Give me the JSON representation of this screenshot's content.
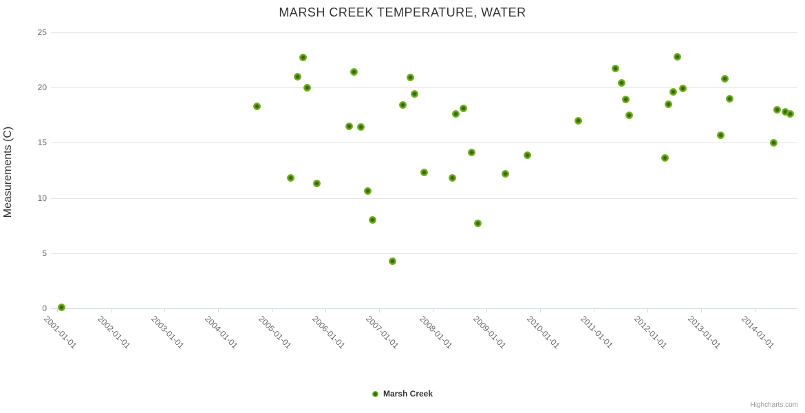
{
  "chart": {
    "title": "MARSH CREEK TEMPERATURE, WATER",
    "y_axis_title": "Measurements (C)",
    "legend_label": "Marsh Creek",
    "credits": "Highcharts.com"
  },
  "colors": {
    "point_outer": "#76b82a",
    "point_inner": "#335f04",
    "grid_line": "#e6e6e6",
    "axis_line": "#ccd6eb",
    "tick_label": "#666666",
    "title_text": "#333333",
    "credits_text": "#999999"
  },
  "chart_data": {
    "type": "scatter",
    "title": "MARSH CREEK TEMPERATURE, WATER",
    "xlabel": "",
    "ylabel": "Measurements (C)",
    "legend_position": "bottom-center",
    "grid": "horizontal-only",
    "ylim": [
      0,
      25
    ],
    "y_ticks": [
      0,
      5,
      10,
      15,
      20,
      25
    ],
    "x_tick_labels": [
      "2001-01-01",
      "2002-01-01",
      "2003-01-01",
      "2004-01-01",
      "2005-01-01",
      "2006-01-01",
      "2007-01-01",
      "2008-01-01",
      "2009-01-01",
      "2010-01-01",
      "2011-01-01",
      "2012-01-01",
      "2013-01-01",
      "2014-01-01"
    ],
    "x_tick_years": [
      2001,
      2002,
      2003,
      2004,
      2005,
      2006,
      2007,
      2008,
      2009,
      2010,
      2011,
      2012,
      2013,
      2014
    ],
    "series": [
      {
        "name": "Marsh Creek",
        "color": "#76b82a",
        "points": [
          {
            "date": "2001-02-01",
            "t": 2001.09,
            "value": 0.1
          },
          {
            "date": "2004-09-22",
            "t": 2004.73,
            "value": 18.3
          },
          {
            "date": "2005-05-12",
            "t": 2005.36,
            "value": 11.8
          },
          {
            "date": "2005-06-24",
            "t": 2005.48,
            "value": 21.0
          },
          {
            "date": "2005-08-03",
            "t": 2005.59,
            "value": 22.7
          },
          {
            "date": "2005-09-02",
            "t": 2005.67,
            "value": 20.0
          },
          {
            "date": "2005-11-03",
            "t": 2005.84,
            "value": 11.3
          },
          {
            "date": "2006-06-10",
            "t": 2006.44,
            "value": 16.5
          },
          {
            "date": "2006-07-12",
            "t": 2006.53,
            "value": 21.4
          },
          {
            "date": "2006-08-29",
            "t": 2006.66,
            "value": 16.4
          },
          {
            "date": "2006-10-16",
            "t": 2006.79,
            "value": 10.6
          },
          {
            "date": "2006-11-18",
            "t": 2006.88,
            "value": 8.0
          },
          {
            "date": "2007-04-05",
            "t": 2007.26,
            "value": 4.3
          },
          {
            "date": "2007-06-10",
            "t": 2007.44,
            "value": 18.4
          },
          {
            "date": "2007-08-03",
            "t": 2007.59,
            "value": 20.9
          },
          {
            "date": "2007-09-02",
            "t": 2007.67,
            "value": 19.4
          },
          {
            "date": "2007-11-03",
            "t": 2007.84,
            "value": 12.3
          },
          {
            "date": "2008-05-15",
            "t": 2008.37,
            "value": 11.8
          },
          {
            "date": "2008-06-06",
            "t": 2008.43,
            "value": 17.6
          },
          {
            "date": "2008-07-30",
            "t": 2008.58,
            "value": 18.1
          },
          {
            "date": "2008-09-24",
            "t": 2008.73,
            "value": 14.1
          },
          {
            "date": "2008-11-03",
            "t": 2008.84,
            "value": 7.7
          },
          {
            "date": "2009-05-08",
            "t": 2009.35,
            "value": 12.2
          },
          {
            "date": "2009-10-09",
            "t": 2009.77,
            "value": 13.9
          },
          {
            "date": "2010-09-17",
            "t": 2010.71,
            "value": 17.0
          },
          {
            "date": "2011-05-30",
            "t": 2011.41,
            "value": 21.7
          },
          {
            "date": "2011-07-09",
            "t": 2011.52,
            "value": 20.4
          },
          {
            "date": "2011-08-07",
            "t": 2011.6,
            "value": 18.9
          },
          {
            "date": "2011-09-02",
            "t": 2011.67,
            "value": 17.5
          },
          {
            "date": "2012-05-01",
            "t": 2012.33,
            "value": 13.6
          },
          {
            "date": "2012-05-26",
            "t": 2012.4,
            "value": 18.5
          },
          {
            "date": "2012-06-24",
            "t": 2012.48,
            "value": 19.6
          },
          {
            "date": "2012-07-23",
            "t": 2012.56,
            "value": 22.8
          },
          {
            "date": "2012-09-02",
            "t": 2012.67,
            "value": 19.9
          },
          {
            "date": "2013-05-15",
            "t": 2013.37,
            "value": 15.7
          },
          {
            "date": "2013-06-10",
            "t": 2013.44,
            "value": 20.8
          },
          {
            "date": "2013-07-16",
            "t": 2013.54,
            "value": 19.0
          },
          {
            "date": "2014-05-08",
            "t": 2014.35,
            "value": 15.0
          },
          {
            "date": "2014-06-03",
            "t": 2014.42,
            "value": 18.0
          },
          {
            "date": "2014-07-27",
            "t": 2014.57,
            "value": 17.8
          },
          {
            "date": "2014-09-02",
            "t": 2014.67,
            "value": 17.6
          }
        ]
      }
    ]
  }
}
